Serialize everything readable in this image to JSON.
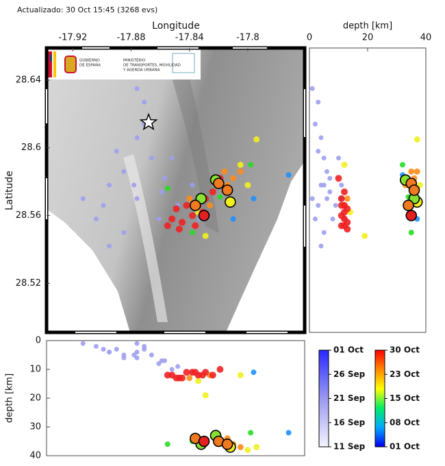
{
  "chart_data": [
    {
      "type": "scatter",
      "title": "Actualizado: 30 Oct 15:45 (3268 evs)",
      "xlabel": "Longitude",
      "ylabel": "Latitude",
      "xlim": [
        -17.938,
        -17.761
      ],
      "ylim": [
        28.491,
        28.659
      ],
      "xticks": [
        -17.92,
        -17.88,
        -17.84,
        -17.8
      ],
      "yticks": [
        28.52,
        28.56,
        28.6,
        28.64
      ],
      "star": {
        "x": -17.868,
        "y": 28.615
      },
      "logo": {
        "government": [
          "GOBIERNO",
          "DE ESPAÑA"
        ],
        "ministry": [
          "MINISTERIO",
          "DE TRANSPORTES, MOVILIDAD",
          "Y AGENDA URBANA"
        ]
      },
      "series": [
        {
          "color": "#9e9ef0",
          "size": 3.5,
          "x": [
            -17.871,
            -17.876,
            -17.866,
            -17.885,
            -17.895,
            -17.857,
            -17.876,
            -17.899,
            -17.861,
            -17.848,
            -17.885,
            -17.904,
            -17.871,
            -17.852,
            -17.838,
            -17.89,
            -17.913,
            -17.895,
            -17.876,
            -17.833,
            -17.878,
            -17.859
          ],
          "values": [
            28.627,
            28.606,
            28.594,
            28.586,
            28.578,
            28.582,
            28.57,
            28.566,
            28.558,
            28.566,
            28.55,
            28.558,
            28.614,
            28.594,
            28.578,
            28.598,
            28.57,
            28.542,
            28.635,
            28.558,
            28.578,
            28.574
          ],
          "depth": [
            3,
            4,
            5,
            6,
            4,
            7,
            6,
            3,
            8,
            9,
            5,
            2,
            2,
            10,
            11,
            3,
            1,
            4,
            1,
            12,
            5,
            7
          ]
        },
        {
          "color": "#1e90ff",
          "size": 4,
          "x": [
            -17.772,
            -17.796,
            -17.81
          ],
          "values": [
            28.584,
            28.57,
            28.558
          ],
          "depth": [
            32,
            11,
            37
          ]
        },
        {
          "color": "#22dd22",
          "size": 4,
          "x": [
            -17.855,
            -17.819,
            -17.798,
            -17.838
          ],
          "values": [
            28.576,
            28.571,
            28.59,
            28.55
          ],
          "depth": [
            36,
            34,
            32,
            35
          ]
        },
        {
          "color": "#f0f020",
          "size": 4.5,
          "x": [
            -17.794,
            -17.81,
            -17.8,
            -17.829,
            -17.834,
            -17.805
          ],
          "values": [
            28.605,
            28.568,
            28.578,
            28.548,
            28.562,
            28.59
          ],
          "depth": [
            37,
            36,
            38,
            19,
            14,
            12
          ]
        },
        {
          "color": "#ff8c1a",
          "size": 4.5,
          "x": [
            -17.84,
            -17.826,
            -17.814,
            -17.81,
            -17.816,
            -17.821,
            -17.805
          ],
          "values": [
            28.57,
            28.566,
            28.578,
            28.582,
            28.586,
            28.578,
            28.586
          ],
          "depth": [
            13,
            12,
            34,
            36,
            35,
            33,
            37
          ]
        },
        {
          "color": "#ee2222",
          "size": 5,
          "x": [
            -17.852,
            -17.845,
            -17.838,
            -17.831,
            -17.849,
            -17.842,
            -17.834,
            -17.829,
            -17.847,
            -17.824,
            -17.836,
            -17.855,
            -17.819
          ],
          "values": [
            28.558,
            28.556,
            28.56,
            28.562,
            28.564,
            28.566,
            28.566,
            28.57,
            28.552,
            28.574,
            28.554,
            28.554,
            28.582
          ],
          "depth": [
            12,
            13,
            11,
            12,
            13,
            11,
            12,
            11,
            13,
            12,
            11,
            12,
            10
          ]
        },
        {
          "color": "#f0f020",
          "size": 7.5,
          "edgecolor": "#000000",
          "x": [
            -17.812
          ],
          "values": [
            28.568
          ],
          "depth": [
            37
          ]
        },
        {
          "color": "#88e030",
          "size": 7.5,
          "edgecolor": "#000000",
          "x": [
            -17.832,
            -17.822
          ],
          "values": [
            28.57,
            28.581
          ],
          "depth": [
            36,
            33
          ]
        },
        {
          "color": "#f07a20",
          "size": 7.5,
          "edgecolor": "#000000",
          "x": [
            -17.82,
            -17.814,
            -17.836
          ],
          "values": [
            28.579,
            28.575,
            28.566
          ],
          "depth": [
            35,
            36,
            34
          ]
        },
        {
          "color": "#e62020",
          "size": 7.5,
          "edgecolor": "#000000",
          "x": [
            -17.83
          ],
          "values": [
            28.56
          ],
          "depth": [
            35
          ]
        }
      ]
    },
    {
      "type": "scatter",
      "xlabel": "depth [km]",
      "xlim": [
        0,
        40
      ],
      "xticks": [
        0,
        20,
        40
      ],
      "ylim": [
        28.491,
        28.659
      ]
    },
    {
      "type": "scatter",
      "ylabel": "depth [km]",
      "xlim": [
        -17.938,
        -17.761
      ],
      "ylim": [
        40,
        0
      ],
      "yticks": [
        0,
        10,
        20,
        30,
        40
      ]
    }
  ],
  "colorbars": [
    {
      "colors": [
        "#f4f4ff",
        "#9a9af0",
        "#2828ff"
      ],
      "ticks": [
        "01 Oct",
        "26 Sep",
        "21 Sep",
        "16 Sep",
        "11 Sep"
      ]
    },
    {
      "colors": [
        "#0000ee",
        "#00aaff",
        "#00ee66",
        "#ffff00",
        "#ff8800",
        "#ff0000"
      ],
      "ticks": [
        "30 Oct",
        "23 Oct",
        "15 Oct",
        "08 Oct",
        "01 Oct"
      ]
    }
  ]
}
